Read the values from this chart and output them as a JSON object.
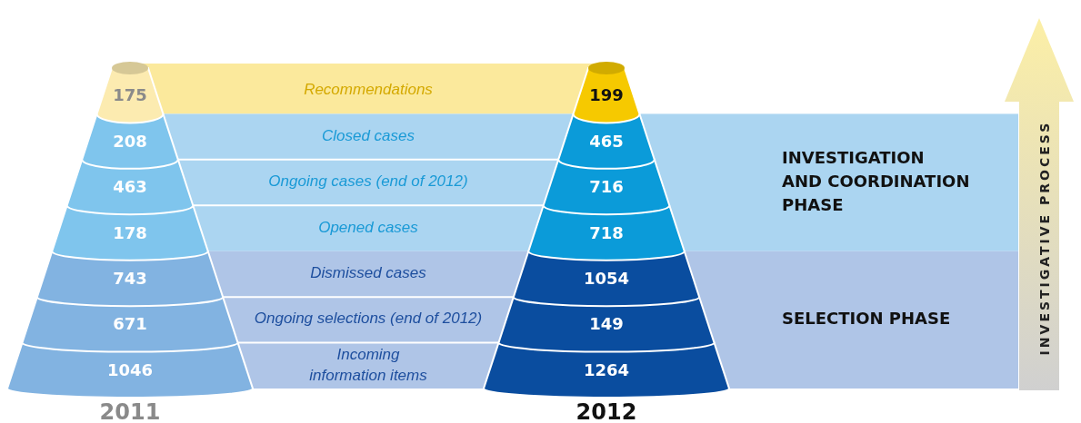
{
  "chart_data": {
    "type": "other",
    "categories": [
      "Recommendations",
      "Closed cases",
      "Ongoing cases (end of 2012)",
      "Opened cases",
      "Dismissed cases",
      "Ongoing selections (end of 2012)",
      "Incoming\ninformation items"
    ],
    "series": [
      {
        "name": "2011",
        "color": "#8a8a8a",
        "colors": [
          "#fcebb0",
          "#7fc5ed",
          "#7fc5ed",
          "#7fc5ed",
          "#82b3e1",
          "#82b3e1",
          "#82b3e1"
        ],
        "values": [
          175,
          208,
          463,
          178,
          743,
          671,
          1046
        ]
      },
      {
        "name": "2012",
        "color": "#111111",
        "colors": [
          "#f6c900",
          "#0b9bd9",
          "#0b9bd9",
          "#0b9bd9",
          "#0a4d9f",
          "#0a4d9f",
          "#0a4d9f"
        ],
        "values": [
          199,
          465,
          716,
          718,
          1054,
          149,
          1264
        ]
      }
    ],
    "annotations": [
      "INVESTIGATION AND COORDINATION PHASE",
      "SELECTION PHASE",
      "INVESTIGATIVE PROCESS"
    ],
    "data_labels": true
  }
}
